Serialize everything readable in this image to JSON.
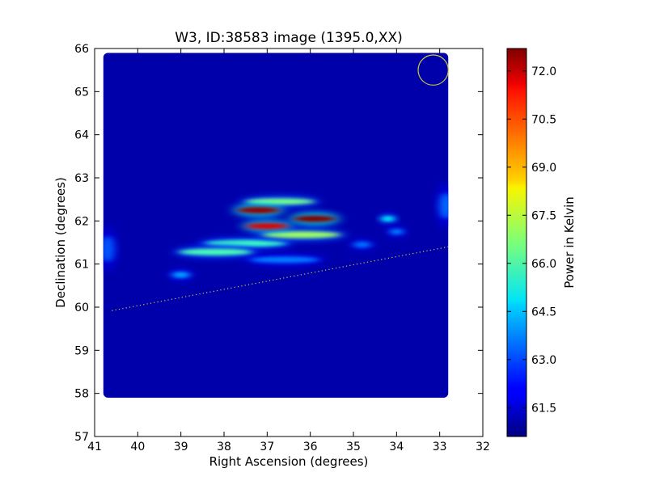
{
  "chart_data": {
    "type": "heatmap",
    "title": "W3, ID:38583 image (1395.0,XX)",
    "xlabel": "Right Ascension (degrees)",
    "ylabel": "Declination (degrees)",
    "xlim": [
      41,
      32
    ],
    "ylim": [
      57,
      66
    ],
    "x_ticks": [
      "41",
      "40",
      "39",
      "38",
      "37",
      "36",
      "35",
      "34",
      "33",
      "32"
    ],
    "y_ticks": [
      "57",
      "58",
      "59",
      "60",
      "61",
      "62",
      "63",
      "64",
      "65",
      "66"
    ],
    "colorbar": {
      "label": "Power in Kelvin",
      "range": [
        60.6,
        72.7
      ],
      "ticks": [
        "61.5",
        "63.0",
        "64.5",
        "66.0",
        "67.5",
        "69.0",
        "70.5",
        "72.0"
      ],
      "colormap": "jet"
    },
    "image_extent": {
      "ra": [
        40.8,
        32.8
      ],
      "dec": [
        57.9,
        65.9
      ]
    },
    "background_level": 61.1,
    "emission_features": [
      {
        "ra_center": 37.2,
        "dec_center": 62.25,
        "ra_width": 1.0,
        "dec_width": 0.08,
        "peak": 72.5
      },
      {
        "ra_center": 35.9,
        "dec_center": 62.05,
        "ra_width": 1.0,
        "dec_width": 0.08,
        "peak": 72.7
      },
      {
        "ra_center": 37.0,
        "dec_center": 61.88,
        "ra_width": 1.0,
        "dec_width": 0.07,
        "peak": 71.6
      },
      {
        "ra_center": 36.7,
        "dec_center": 62.45,
        "ra_width": 1.6,
        "dec_width": 0.07,
        "peak": 66.5
      },
      {
        "ra_center": 36.2,
        "dec_center": 61.68,
        "ra_width": 1.8,
        "dec_width": 0.08,
        "peak": 67.0
      },
      {
        "ra_center": 37.5,
        "dec_center": 61.48,
        "ra_width": 1.9,
        "dec_width": 0.08,
        "peak": 65.8
      },
      {
        "ra_center": 38.2,
        "dec_center": 61.28,
        "ra_width": 1.7,
        "dec_width": 0.08,
        "peak": 66.0
      },
      {
        "ra_center": 36.6,
        "dec_center": 61.1,
        "ra_width": 1.6,
        "dec_width": 0.07,
        "peak": 63.6
      },
      {
        "ra_center": 39.0,
        "dec_center": 60.75,
        "ra_width": 0.4,
        "dec_width": 0.06,
        "peak": 64.1
      },
      {
        "ra_center": 34.2,
        "dec_center": 62.05,
        "ra_width": 0.3,
        "dec_width": 0.06,
        "peak": 65.2
      },
      {
        "ra_center": 34.0,
        "dec_center": 61.75,
        "ra_width": 0.3,
        "dec_width": 0.05,
        "peak": 63.7
      },
      {
        "ra_center": 34.8,
        "dec_center": 61.45,
        "ra_width": 0.4,
        "dec_width": 0.05,
        "peak": 63.5
      },
      {
        "ra_center": 40.7,
        "dec_center": 61.35,
        "ra_width": 0.3,
        "dec_width": 0.3,
        "peak": 63.2
      },
      {
        "ra_center": 32.85,
        "dec_center": 62.35,
        "ra_width": 0.3,
        "dec_width": 0.3,
        "peak": 63.4
      }
    ],
    "beam_circle": {
      "ra": 33.15,
      "dec": 65.5,
      "radius_deg": 0.35,
      "color": "#c8c83a"
    },
    "galactic_plane_line": {
      "points": [
        [
          40.6,
          59.92
        ],
        [
          32.8,
          61.4
        ]
      ],
      "style": "dotted",
      "color": "#c8c83a"
    },
    "grid": false,
    "legend": "none"
  }
}
